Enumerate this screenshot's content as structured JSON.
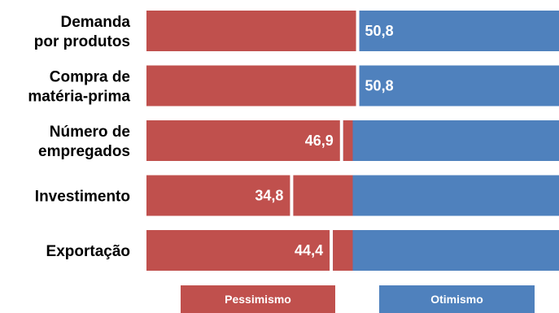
{
  "chart_data": {
    "type": "bar",
    "orientation": "horizontal",
    "stacked": "diverging",
    "midpoint": 50,
    "xlim": [
      0,
      100
    ],
    "categories": [
      [
        "Demanda",
        "por produtos"
      ],
      [
        "Compra de",
        "matéria-prima"
      ],
      [
        "Número de",
        "empregados"
      ],
      [
        "Investimento"
      ],
      [
        "Exportação"
      ]
    ],
    "values": [
      50.8,
      50.8,
      46.9,
      34.8,
      44.4
    ],
    "value_labels": [
      "50,8",
      "50,8",
      "46,9",
      "34,8",
      "44,4"
    ],
    "legend": {
      "placement": "bottom",
      "items": [
        {
          "label": "Pessimismo",
          "color": "#C0504D"
        },
        {
          "label": "Otimismo",
          "color": "#4F81BD"
        }
      ]
    },
    "colors": {
      "pessimism": "#C0504D",
      "optimism": "#4F81BD",
      "background": "#FFFFFF"
    },
    "grid": false
  }
}
